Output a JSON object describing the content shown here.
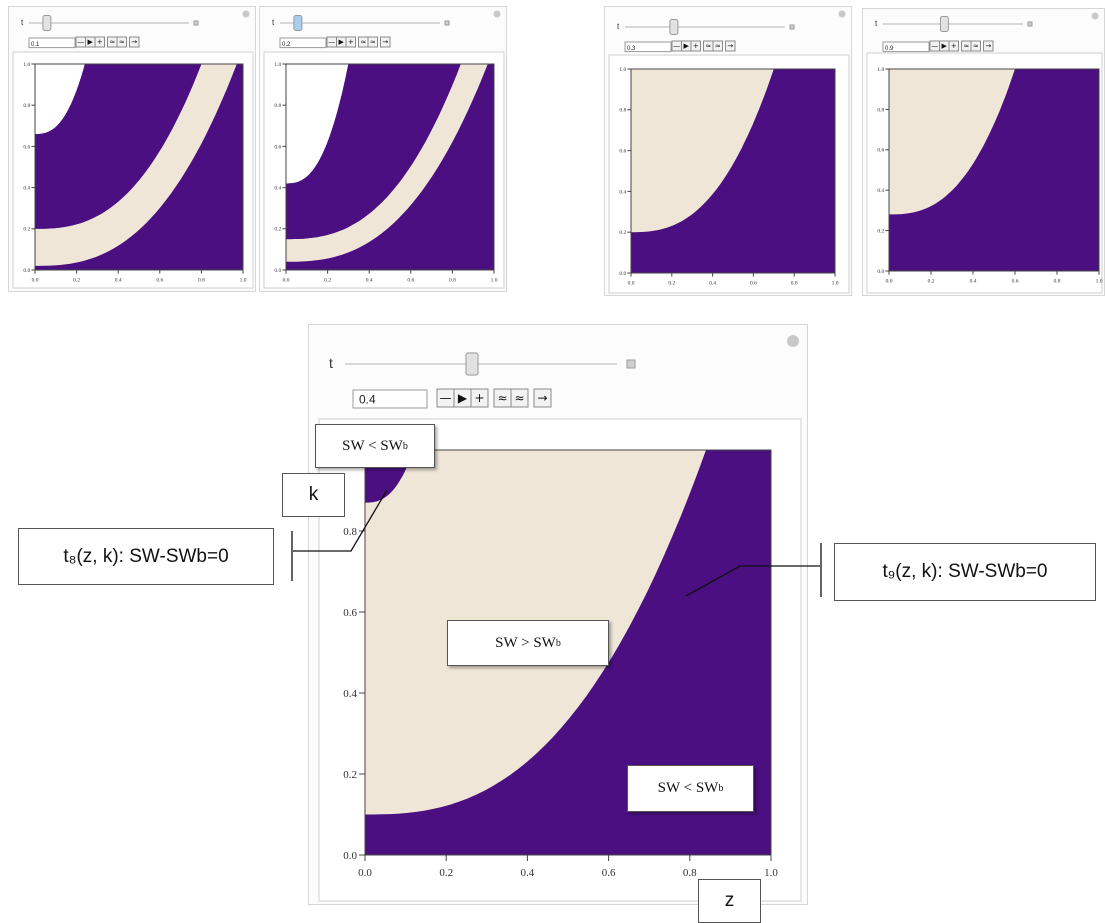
{
  "colors": {
    "purple": "#4b0f82",
    "beige": "#efe6d7",
    "frame": "#d6d6d6"
  },
  "slider_label": "t",
  "panels": [
    {
      "id": "p1",
      "t_value": "0.1",
      "show_lower_curve": true
    },
    {
      "id": "p2",
      "t_value": "0.2",
      "show_lower_curve": true
    },
    {
      "id": "p3",
      "t_value": "0.3",
      "show_lower_curve": false
    },
    {
      "id": "p4",
      "t_value": "0.9",
      "show_lower_curve": false
    },
    {
      "id": "main",
      "t_value": "0.4",
      "show_lower_curve": false
    }
  ],
  "axis": {
    "x_ticks": [
      "0.0",
      "0.2",
      "0.4",
      "0.6",
      "0.8",
      "1.0"
    ],
    "y_ticks": [
      "0.0",
      "0.2",
      "0.4",
      "0.6",
      "0.8",
      "1.0"
    ],
    "main_y_ticks": [
      "0.0",
      "0.2",
      "0.4",
      "0.6",
      "0.8"
    ]
  },
  "annotations": {
    "top_region": {
      "base": "SW < SW",
      "sub": "b"
    },
    "middle_region": {
      "base": "SW > SW",
      "sub": "b"
    },
    "bottom_region": {
      "base": "SW < SW",
      "sub": "b"
    },
    "k_label": "k",
    "z_label": "z",
    "t8_label": "t₈(z, k): SW-SWb=0",
    "t9_label": "t₉(z, k): SW-SWb=0"
  }
}
